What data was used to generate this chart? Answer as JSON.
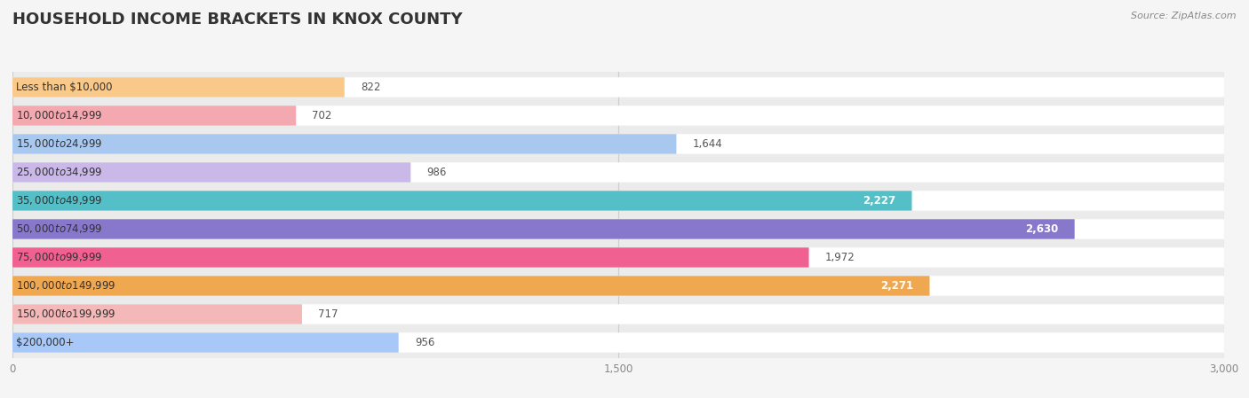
{
  "title": "HOUSEHOLD INCOME BRACKETS IN KNOX COUNTY",
  "source": "Source: ZipAtlas.com",
  "categories": [
    "Less than $10,000",
    "$10,000 to $14,999",
    "$15,000 to $24,999",
    "$25,000 to $34,999",
    "$35,000 to $49,999",
    "$50,000 to $74,999",
    "$75,000 to $99,999",
    "$100,000 to $149,999",
    "$150,000 to $199,999",
    "$200,000+"
  ],
  "values": [
    822,
    702,
    1644,
    986,
    2227,
    2630,
    1972,
    2271,
    717,
    956
  ],
  "bar_colors": [
    "#F9C98A",
    "#F4A8B0",
    "#A8C8F0",
    "#C9B8E8",
    "#55BFC8",
    "#8878CC",
    "#F06090",
    "#F0A850",
    "#F4B8B8",
    "#A8C8F8"
  ],
  "plot_bg_color": "#ebebeb",
  "bar_bg_color": "#ffffff",
  "fig_bg_color": "#f5f5f5",
  "xlim": [
    0,
    3000
  ],
  "xticks": [
    0,
    1500,
    3000
  ],
  "title_fontsize": 13,
  "label_fontsize": 8.5,
  "value_fontsize": 8.5,
  "source_fontsize": 8
}
